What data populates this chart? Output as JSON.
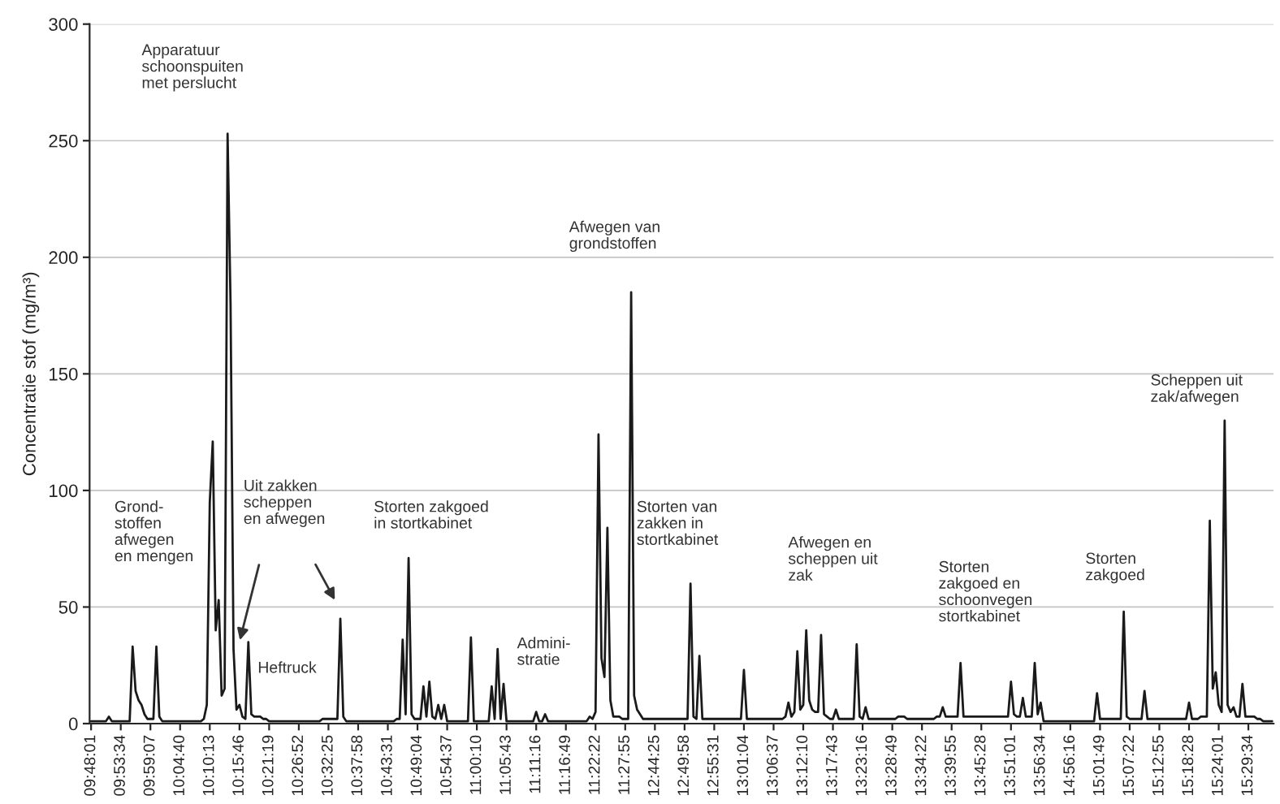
{
  "chart_data": {
    "type": "line",
    "ylabel": "Concentratie stof (mg/m³)",
    "ylim": [
      0,
      300
    ],
    "yticks": [
      0,
      50,
      100,
      150,
      200,
      250,
      300
    ],
    "categories": [
      "09:48:01",
      null,
      null,
      null,
      null,
      null,
      null,
      null,
      null,
      null,
      "09:53:34",
      null,
      null,
      null,
      null,
      null,
      null,
      null,
      null,
      null,
      "09:59:07",
      null,
      null,
      null,
      null,
      null,
      null,
      null,
      null,
      null,
      "10:04:40",
      null,
      null,
      null,
      null,
      null,
      null,
      null,
      null,
      null,
      "10:10:13",
      null,
      null,
      null,
      null,
      null,
      null,
      null,
      null,
      null,
      "10:15:46",
      null,
      null,
      null,
      null,
      null,
      null,
      null,
      null,
      null,
      "10:21:19",
      null,
      null,
      null,
      null,
      null,
      null,
      null,
      null,
      null,
      "10:26:52",
      null,
      null,
      null,
      null,
      null,
      null,
      null,
      null,
      null,
      "10:32:25",
      null,
      null,
      null,
      null,
      null,
      null,
      null,
      null,
      null,
      "10:37:58",
      null,
      null,
      null,
      null,
      null,
      null,
      null,
      null,
      null,
      "10:43:31",
      null,
      null,
      null,
      null,
      null,
      null,
      null,
      null,
      null,
      "10:49:04",
      null,
      null,
      null,
      null,
      null,
      null,
      null,
      null,
      null,
      "10:54:37",
      null,
      null,
      null,
      null,
      null,
      null,
      null,
      null,
      null,
      "11:00:10",
      null,
      null,
      null,
      null,
      null,
      null,
      null,
      null,
      null,
      "11:05:43",
      null,
      null,
      null,
      null,
      null,
      null,
      null,
      null,
      null,
      "11:11:16",
      null,
      null,
      null,
      null,
      null,
      null,
      null,
      null,
      null,
      "11:16:49",
      null,
      null,
      null,
      null,
      null,
      null,
      null,
      null,
      null,
      "11:22:22",
      null,
      null,
      null,
      null,
      null,
      null,
      null,
      null,
      null,
      "11:27:55",
      null,
      null,
      null,
      null,
      null,
      null,
      null,
      null,
      null,
      "12:44:25",
      null,
      null,
      null,
      null,
      null,
      null,
      null,
      null,
      null,
      "12:49:58",
      null,
      null,
      null,
      null,
      null,
      null,
      null,
      null,
      null,
      "12:55:31",
      null,
      null,
      null,
      null,
      null,
      null,
      null,
      null,
      null,
      "13:01:04",
      null,
      null,
      null,
      null,
      null,
      null,
      null,
      null,
      null,
      "13:06:37",
      null,
      null,
      null,
      null,
      null,
      null,
      null,
      null,
      null,
      "13:12:10",
      null,
      null,
      null,
      null,
      null,
      null,
      null,
      null,
      null,
      "13:17:43",
      null,
      null,
      null,
      null,
      null,
      null,
      null,
      null,
      null,
      "13:23:16",
      null,
      null,
      null,
      null,
      null,
      null,
      null,
      null,
      null,
      "13:28:49",
      null,
      null,
      null,
      null,
      null,
      null,
      null,
      null,
      null,
      "13:34:22",
      null,
      null,
      null,
      null,
      null,
      null,
      null,
      null,
      null,
      "13:39:55",
      null,
      null,
      null,
      null,
      null,
      null,
      null,
      null,
      null,
      "13:45:28",
      null,
      null,
      null,
      null,
      null,
      null,
      null,
      null,
      null,
      "13:51:01",
      null,
      null,
      null,
      null,
      null,
      null,
      null,
      null,
      null,
      "13:56:34",
      null,
      null,
      null,
      null,
      null,
      null,
      null,
      null,
      null,
      "14:56:16",
      null,
      null,
      null,
      null,
      null,
      null,
      null,
      null,
      null,
      "15:01:49",
      null,
      null,
      null,
      null,
      null,
      null,
      null,
      null,
      null,
      "15:07:22",
      null,
      null,
      null,
      null,
      null,
      null,
      null,
      null,
      null,
      "15:12:55",
      null,
      null,
      null,
      null,
      null,
      null,
      null,
      null,
      null,
      "15:18:28",
      null,
      null,
      null,
      null,
      null,
      null,
      null,
      null,
      null,
      "15:24:01",
      null,
      null,
      null,
      null,
      null,
      null,
      null,
      null,
      null,
      "15:29:34",
      null,
      null,
      null,
      null,
      null,
      null,
      null,
      null
    ],
    "grid": "y",
    "legend": false,
    "marker": "none",
    "line_style": "solid",
    "series": [
      {
        "color": "#1a1a1a",
        "values": [
          1,
          1,
          1,
          1,
          1,
          1,
          3,
          1,
          1,
          1,
          1,
          1,
          1,
          1,
          33,
          14,
          10,
          8,
          4,
          2,
          2,
          2,
          33,
          3,
          1,
          1,
          1,
          1,
          1,
          1,
          1,
          1,
          1,
          1,
          1,
          1,
          1,
          1,
          2,
          8,
          95,
          121,
          40,
          53,
          12,
          15,
          253,
          180,
          32,
          6,
          8,
          3,
          2,
          35,
          4,
          3,
          3,
          3,
          2,
          2,
          1,
          1,
          1,
          1,
          1,
          1,
          1,
          1,
          1,
          1,
          1,
          1,
          1,
          1,
          1,
          1,
          1,
          1,
          2,
          2,
          2,
          2,
          2,
          2,
          45,
          3,
          1,
          1,
          1,
          1,
          1,
          1,
          1,
          1,
          1,
          1,
          1,
          1,
          1,
          1,
          1,
          1,
          1,
          2,
          2,
          36,
          4,
          71,
          4,
          2,
          2,
          2,
          16,
          3,
          18,
          3,
          2,
          8,
          2,
          8,
          1,
          1,
          1,
          1,
          1,
          1,
          1,
          1,
          37,
          1,
          1,
          1,
          1,
          1,
          1,
          16,
          2,
          32,
          2,
          17,
          1,
          1,
          1,
          1,
          1,
          1,
          1,
          1,
          1,
          1,
          5,
          1,
          1,
          4,
          1,
          1,
          1,
          1,
          1,
          1,
          1,
          1,
          1,
          1,
          1,
          1,
          1,
          1,
          3,
          2,
          5,
          124,
          28,
          20,
          84,
          10,
          3,
          3,
          3,
          2,
          2,
          2,
          185,
          12,
          6,
          4,
          2,
          2,
          2,
          2,
          2,
          2,
          2,
          2,
          2,
          2,
          2,
          2,
          2,
          2,
          2,
          2,
          60,
          3,
          2,
          29,
          2,
          2,
          2,
          2,
          2,
          2,
          2,
          2,
          2,
          2,
          2,
          2,
          2,
          2,
          23,
          2,
          2,
          2,
          2,
          2,
          2,
          2,
          2,
          2,
          2,
          2,
          2,
          2,
          3,
          9,
          3,
          5,
          31,
          6,
          8,
          40,
          10,
          6,
          5,
          5,
          38,
          4,
          3,
          2,
          2,
          6,
          2,
          2,
          2,
          2,
          2,
          2,
          34,
          3,
          2,
          7,
          2,
          2,
          2,
          2,
          2,
          2,
          2,
          2,
          2,
          2,
          3,
          3,
          3,
          2,
          2,
          2,
          2,
          2,
          2,
          2,
          2,
          2,
          2,
          3,
          3,
          7,
          3,
          3,
          3,
          3,
          3,
          26,
          3,
          3,
          3,
          3,
          3,
          3,
          3,
          3,
          3,
          3,
          3,
          3,
          3,
          3,
          3,
          3,
          18,
          4,
          3,
          3,
          11,
          3,
          3,
          3,
          26,
          4,
          9,
          1,
          1,
          1,
          1,
          1,
          1,
          1,
          1,
          1,
          1,
          1,
          1,
          1,
          1,
          1,
          1,
          1,
          1,
          13,
          2,
          2,
          2,
          2,
          2,
          2,
          2,
          2,
          48,
          3,
          2,
          2,
          2,
          2,
          2,
          14,
          2,
          2,
          2,
          2,
          2,
          2,
          2,
          2,
          2,
          2,
          2,
          2,
          2,
          2,
          9,
          2,
          2,
          2,
          3,
          3,
          3,
          87,
          15,
          22,
          8,
          5,
          130,
          8,
          5,
          7,
          3,
          3,
          17,
          3,
          3,
          3,
          3,
          2,
          2,
          1,
          1,
          1,
          1
        ]
      }
    ],
    "annotations": [
      "Apparatuur\nschoonspuiten\nmet perslucht",
      "Grond-\nstoffen\nafwegen\nen mengen",
      "Uit zakken\nscheppen\nen afwegen",
      "Heftruck",
      "Storten zakgoed\nin stortkabinet",
      "Admini-\nstratie",
      "Afwegen van\ngrondstoffen",
      "Storten van\nzakken in\nstortkabinet",
      "Afwegen en\nscheppen uit\nzak",
      "Storten\nzakgoed en\nschoonvegen\nstortkabinet",
      "Storten\nzakgoed",
      "Scheppen uit\nzak/afwegen"
    ]
  }
}
